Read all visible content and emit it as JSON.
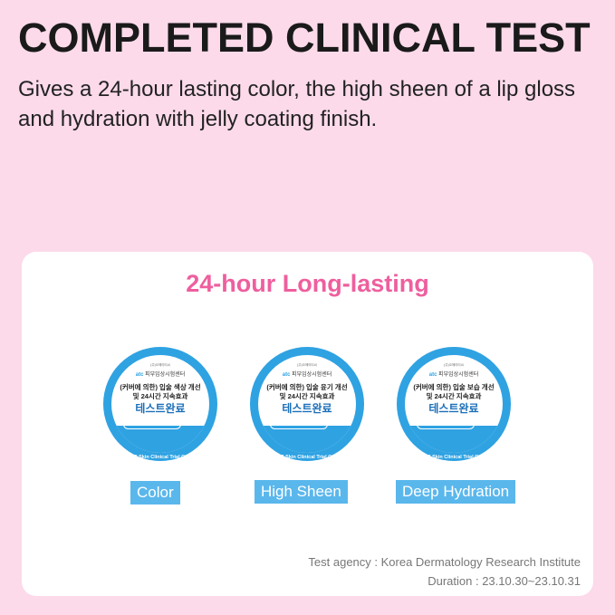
{
  "header": {
    "title": "COMPLETED CLINICAL TEST",
    "subtitle": "Gives a 24-hour lasting color, the high sheen of a lip gloss and hydration with jelly coating finish."
  },
  "card": {
    "title": "24-hour Long-lasting",
    "badges": [
      {
        "top": "(주)오에이티씨",
        "logo": "atc",
        "center": "피부임상시험센터",
        "line1": "(커버에 의한) 입술 색상 개선",
        "line2": "및 24시간 지속효과",
        "done": "테스트완료",
        "pill": "인체적용시험완료",
        "ring": "OATC Skin Clinical Trial Center",
        "label": "Color"
      },
      {
        "top": "(주)오에이티씨",
        "logo": "atc",
        "center": "피부임상시험센터",
        "line1": "(커버에 의한) 입술 윤기 개선",
        "line2": "및 24시간 지속효과",
        "done": "테스트완료",
        "pill": "인체적용시험완료",
        "ring": "OATC Skin Clinical Trial Center",
        "label": "High Sheen"
      },
      {
        "top": "(주)오에이티씨",
        "logo": "atc",
        "center": "피부임상시험센터",
        "line1": "(커버에 의한) 입술 보습 개선",
        "line2": "및 24시간 지속효과",
        "done": "테스트완료",
        "pill": "인체적용시험완료",
        "ring": "OATC Skin Clinical Trial Center",
        "label": "Deep Hydration"
      }
    ],
    "agency": "Test agency : Korea Dermatology Research Institute",
    "duration": "Duration : 23.10.30~23.10.31"
  },
  "colors": {
    "background": "#fcdaea",
    "accent_pink": "#ee5f9e",
    "badge_blue": "#2fa2e2",
    "label_blue": "#5ab7ec"
  }
}
